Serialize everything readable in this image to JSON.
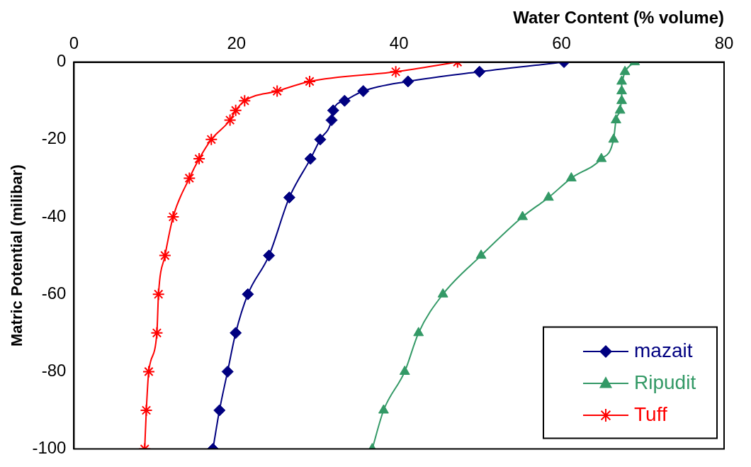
{
  "chart_data": {
    "type": "line",
    "xlabel": "Water Content (% volume)",
    "ylabel": "Matric Potential (milibar)",
    "xlim": [
      0,
      80
    ],
    "xticks": [
      0,
      20,
      40,
      60,
      80
    ],
    "ylim": [
      -100,
      0
    ],
    "yticks": [
      -100,
      -80,
      -60,
      -40,
      -20,
      0
    ],
    "grid": false,
    "legend": "bottom right",
    "line_style": "solid",
    "series": [
      {
        "name": "mazait",
        "color": "#000080",
        "marker": "diamond",
        "x": [
          60.3,
          49.9,
          41.1,
          35.6,
          33.3,
          31.9,
          31.7,
          30.3,
          29.1,
          26.5,
          24,
          21.4,
          19.9,
          18.9,
          17.9,
          17.1
        ],
        "values": [
          0,
          -2.5,
          -5,
          -7.5,
          -10,
          -12.5,
          -15,
          -20,
          -25,
          -35,
          -50,
          -60,
          -70,
          -80,
          -90,
          -100
        ]
      },
      {
        "name": "Ripudit",
        "color": "#339966",
        "marker": "triangle",
        "x": [
          69,
          67.8,
          67.4,
          67.4,
          67.4,
          67.2,
          66.7,
          66.4,
          64.9,
          61.2,
          58.4,
          55.2,
          50.1,
          45.4,
          42.4,
          40.7,
          38.1,
          36.7
        ],
        "values": [
          0,
          -2.5,
          -5,
          -7.5,
          -10,
          -12.5,
          -15,
          -20,
          -25,
          -30,
          -35,
          -40,
          -50,
          -60,
          -70,
          -80,
          -90,
          -100
        ]
      },
      {
        "name": "Tuff",
        "color": "#ff0000",
        "marker": "cross",
        "x": [
          47.2,
          39.6,
          29,
          25,
          21,
          19.9,
          19.2,
          16.9,
          15.4,
          14.2,
          12.2,
          11.2,
          10.4,
          10.2,
          9.2,
          8.9,
          8.7
        ],
        "values": [
          0,
          -2.5,
          -5,
          -7.5,
          -10,
          -12.5,
          -15,
          -20,
          -25,
          -30,
          -40,
          -50,
          -60,
          -70,
          -80,
          -90,
          -100
        ]
      }
    ]
  }
}
